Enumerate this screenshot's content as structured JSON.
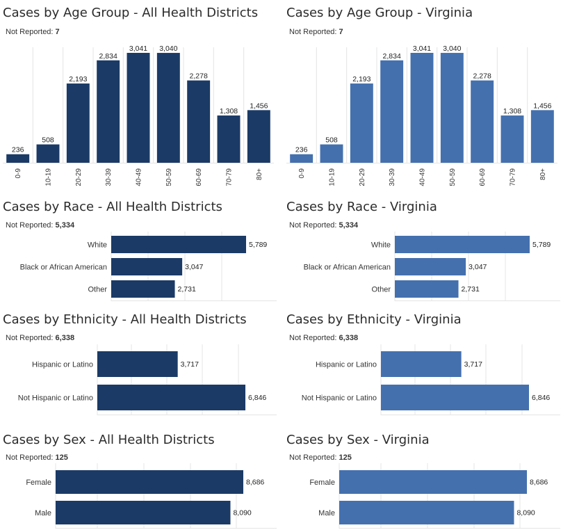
{
  "colors": {
    "dark": "#1b3a66",
    "light": "#4470ae",
    "grid": "#e4e4e4",
    "text": "#333333"
  },
  "not_reported_label": "Not Reported:",
  "chart_data": [
    {
      "id": "age-all",
      "type": "bar",
      "title": "Cases by Age Group - All Health Districts",
      "not_reported": "7",
      "color": "dark",
      "categories": [
        "0-9",
        "10-19",
        "20-29",
        "30-39",
        "40-49",
        "50-59",
        "60-69",
        "70-79",
        "80+"
      ],
      "values": [
        236,
        508,
        2193,
        2834,
        3041,
        3040,
        2278,
        1308,
        1456
      ],
      "labels": [
        "236",
        "508",
        "2,193",
        "2,834",
        "3,041",
        "3,040",
        "2,278",
        "1,308",
        "1,456"
      ],
      "ylim": [
        0,
        3041
      ]
    },
    {
      "id": "age-va",
      "type": "bar",
      "title": "Cases by Age Group - Virginia",
      "not_reported": "7",
      "color": "light",
      "categories": [
        "0-9",
        "10-19",
        "20-29",
        "30-39",
        "40-49",
        "50-59",
        "60-69",
        "70-79",
        "80+"
      ],
      "values": [
        236,
        508,
        2193,
        2834,
        3041,
        3040,
        2278,
        1308,
        1456
      ],
      "labels": [
        "236",
        "508",
        "2,193",
        "2,834",
        "3,041",
        "3,040",
        "2,278",
        "1,308",
        "1,456"
      ],
      "ylim": [
        0,
        3041
      ]
    },
    {
      "id": "race-all",
      "type": "bar",
      "orientation": "horizontal",
      "title": "Cases by Race - All Health Districts",
      "not_reported": "5,334",
      "color": "dark",
      "categories": [
        "White",
        "Black or African American",
        "Other"
      ],
      "values": [
        5789,
        3047,
        2731
      ],
      "labels": [
        "5,789",
        "3,047",
        "2,731"
      ],
      "xlim": [
        0,
        5789
      ]
    },
    {
      "id": "race-va",
      "type": "bar",
      "orientation": "horizontal",
      "title": "Cases by Race - Virginia",
      "not_reported": "5,334",
      "color": "light",
      "categories": [
        "White",
        "Black or African American",
        "Other"
      ],
      "values": [
        5789,
        3047,
        2731
      ],
      "labels": [
        "5,789",
        "3,047",
        "2,731"
      ],
      "xlim": [
        0,
        5789
      ]
    },
    {
      "id": "eth-all",
      "type": "bar",
      "orientation": "horizontal",
      "title": "Cases by Ethnicity - All Health Districts",
      "not_reported": "6,338",
      "color": "dark",
      "categories": [
        "Hispanic or Latino",
        "Not Hispanic or Latino"
      ],
      "values": [
        3717,
        6846
      ],
      "labels": [
        "3,717",
        "6,846"
      ],
      "xlim": [
        0,
        6846
      ]
    },
    {
      "id": "eth-va",
      "type": "bar",
      "orientation": "horizontal",
      "title": "Cases by Ethnicity - Virginia",
      "not_reported": "6,338",
      "color": "light",
      "categories": [
        "Hispanic or Latino",
        "Not Hispanic or Latino"
      ],
      "values": [
        3717,
        6846
      ],
      "labels": [
        "3,717",
        "6,846"
      ],
      "xlim": [
        0,
        6846
      ]
    },
    {
      "id": "sex-all",
      "type": "bar",
      "orientation": "horizontal",
      "title": "Cases by Sex - All Health Districts",
      "not_reported": "125",
      "color": "dark",
      "categories": [
        "Female",
        "Male"
      ],
      "values": [
        8686,
        8090
      ],
      "labels": [
        "8,686",
        "8,090"
      ],
      "xlim": [
        0,
        8686
      ]
    },
    {
      "id": "sex-va",
      "type": "bar",
      "orientation": "horizontal",
      "title": "Cases by Sex - Virginia",
      "not_reported": "125",
      "color": "light",
      "categories": [
        "Female",
        "Male"
      ],
      "values": [
        8686,
        8090
      ],
      "labels": [
        "8,686",
        "8,090"
      ],
      "xlim": [
        0,
        8686
      ]
    }
  ]
}
